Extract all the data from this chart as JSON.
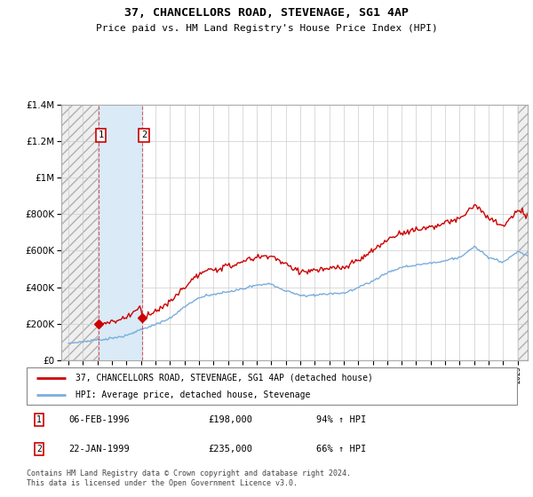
{
  "title": "37, CHANCELLORS ROAD, STEVENAGE, SG1 4AP",
  "subtitle": "Price paid vs. HM Land Registry's House Price Index (HPI)",
  "legend_entry1": "37, CHANCELLORS ROAD, STEVENAGE, SG1 4AP (detached house)",
  "legend_entry2": "HPI: Average price, detached house, Stevenage",
  "sale1_date": "06-FEB-1996",
  "sale1_price": 198000,
  "sale1_hpi": "94% ↑ HPI",
  "sale2_date": "22-JAN-1999",
  "sale2_price": 235000,
  "sale2_hpi": "66% ↑ HPI",
  "footer": "Contains HM Land Registry data © Crown copyright and database right 2024.\nThis data is licensed under the Open Government Licence v3.0.",
  "hpi_color": "#7aaddc",
  "price_color": "#cc0000",
  "shaded_region_color": "#daeaf7",
  "hatch_region_color": "#cccccc",
  "ylim": [
    0,
    1400000
  ],
  "xlim_start": 1993.5,
  "xlim_end": 2025.7,
  "sale1_x": 1996.09,
  "sale2_x": 1999.06,
  "yticks": [
    0,
    200000,
    400000,
    600000,
    800000,
    1000000,
    1200000,
    1400000
  ]
}
